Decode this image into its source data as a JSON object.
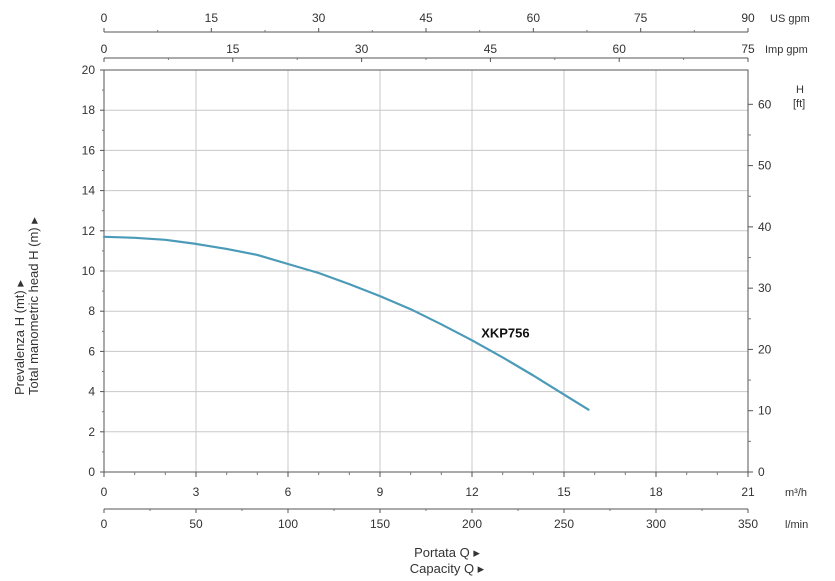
{
  "chart_data": {
    "type": "line",
    "series": [
      {
        "name": "XKP756",
        "color": "#4a9ab8",
        "x": [
          0,
          1,
          2,
          3,
          4,
          5,
          6,
          7,
          8,
          9,
          10,
          11,
          12,
          13,
          14,
          15,
          15.8
        ],
        "y": [
          11.7,
          11.65,
          11.55,
          11.35,
          11.1,
          10.8,
          10.35,
          9.9,
          9.35,
          8.75,
          8.1,
          7.35,
          6.55,
          5.7,
          4.8,
          3.85,
          3.1
        ]
      }
    ],
    "axes": {
      "bottom_primary": {
        "unit": "m³/h",
        "min": 0,
        "max": 21,
        "ticks": [
          0,
          3,
          6,
          9,
          12,
          15,
          18,
          21
        ],
        "title_lines": [
          "Portata Q ▸",
          "Capacity Q ▸"
        ]
      },
      "bottom_secondary": {
        "unit": "l/min",
        "min": 0,
        "max": 350,
        "ticks": [
          0,
          50,
          100,
          150,
          200,
          250,
          300,
          350
        ]
      },
      "top_primary": {
        "unit": "US gpm",
        "min": 0,
        "max": 90,
        "ticks": [
          0,
          15,
          30,
          45,
          60,
          75,
          90
        ]
      },
      "top_secondary": {
        "unit": "Imp gpm",
        "min": 0,
        "max": 75,
        "ticks": [
          0,
          15,
          30,
          45,
          60,
          75
        ]
      },
      "left": {
        "unit": "m",
        "min": 0,
        "max": 20,
        "ticks": [
          0,
          2,
          4,
          6,
          8,
          10,
          12,
          14,
          16,
          18,
          20
        ],
        "title_lines": [
          "Prevalenza H (mt) ▸",
          "Total manometric head H (m) ▸"
        ]
      },
      "right": {
        "unit_lines": [
          "H",
          "[ft]"
        ],
        "min": 0,
        "max": 65.6,
        "ticks": [
          0,
          10,
          20,
          30,
          40,
          50,
          60
        ]
      }
    },
    "grid": true
  }
}
